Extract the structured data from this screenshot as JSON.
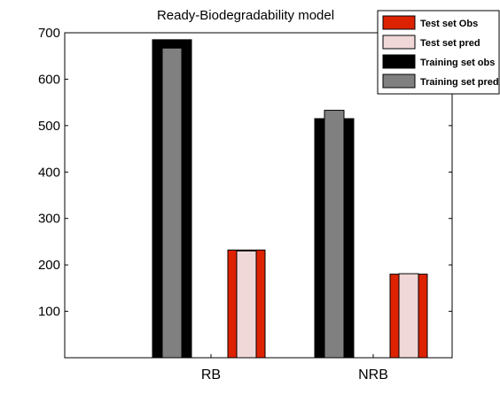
{
  "chart_data": {
    "type": "bar",
    "title": "Ready-Biodegradability model",
    "xlabel": "",
    "ylabel": "",
    "categories": [
      "RB",
      "NRB"
    ],
    "ylim": [
      0,
      700
    ],
    "yticks": [
      100,
      200,
      300,
      400,
      500,
      600,
      700
    ],
    "grid": false,
    "legend_position": "top-right",
    "series": [
      {
        "name": "Test set Obs",
        "values": [
          232,
          180
        ],
        "color": "#dd2200"
      },
      {
        "name": "Test set pred",
        "values": [
          230,
          181
        ],
        "color": "#f0d8d8"
      },
      {
        "name": "Training set obs",
        "values": [
          685,
          515
        ],
        "color": "#000000"
      },
      {
        "name": "Training set pred",
        "values": [
          667,
          533
        ],
        "color": "#808080"
      }
    ]
  }
}
